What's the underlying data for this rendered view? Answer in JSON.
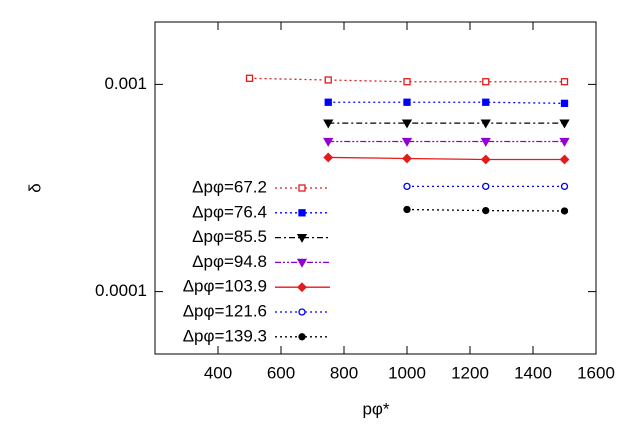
{
  "chart_data": {
    "type": "line",
    "x_label": "pφ*",
    "y_label": "δ",
    "y_log": true,
    "xlim": [
      200,
      1600
    ],
    "xticks": [
      400,
      600,
      800,
      1000,
      1200,
      1400,
      1600
    ],
    "ylim": [
      5e-05,
      0.002
    ],
    "yticks": [
      0.0001,
      0.001
    ],
    "legend": "lower-left",
    "series": [
      {
        "name": "Δpφ=67.2",
        "color": "#e41a1c",
        "marker": "open-square",
        "dash": "dotted",
        "x": [
          500,
          750,
          1000,
          1250,
          1500
        ],
        "values": [
          0.00107,
          0.00105,
          0.00103,
          0.00103,
          0.00103
        ]
      },
      {
        "name": "Δpφ=76.4",
        "color": "#0000ff",
        "marker": "square",
        "dash": "dotted",
        "x": [
          750,
          1000,
          1250,
          1500
        ],
        "values": [
          0.00082,
          0.00082,
          0.00082,
          0.00081
        ]
      },
      {
        "name": "Δpφ=85.5",
        "color": "#000000",
        "marker": "triangle-down",
        "dash": "dashdot",
        "x": [
          750,
          1000,
          1250,
          1500
        ],
        "values": [
          0.00065,
          0.00065,
          0.00065,
          0.00065
        ]
      },
      {
        "name": "Δpφ=94.8",
        "color": "#9400d3",
        "marker": "triangle-down",
        "dash": "dashdotdot",
        "x": [
          750,
          1000,
          1250,
          1500
        ],
        "values": [
          0.00053,
          0.00053,
          0.00053,
          0.00053
        ]
      },
      {
        "name": "Δpφ=103.9",
        "color": "#e41a1c",
        "marker": "diamond",
        "dash": "solid",
        "x": [
          750,
          1000,
          1250,
          1500
        ],
        "values": [
          0.000444,
          0.000439,
          0.000434,
          0.000434
        ]
      },
      {
        "name": "Δpφ=121.6",
        "color": "#0000ff",
        "marker": "open-circle",
        "dash": "dotted",
        "x": [
          1000,
          1250,
          1500
        ],
        "values": [
          0.000322,
          0.000322,
          0.000322
        ]
      },
      {
        "name": "Δpφ=139.3",
        "color": "#000000",
        "marker": "circle",
        "dash": "dotted",
        "x": [
          1000,
          1250,
          1500
        ],
        "values": [
          0.000249,
          0.000246,
          0.000245
        ]
      }
    ]
  }
}
